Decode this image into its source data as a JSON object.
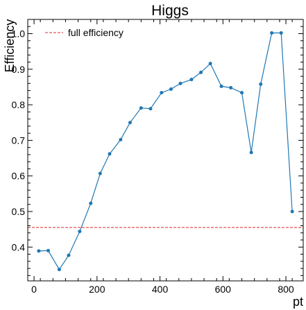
{
  "chart_data": {
    "type": "line",
    "title": "Higgs",
    "xlabel": "pt",
    "ylabel": "Efficiency",
    "xlim": [
      -20,
      855
    ],
    "ylim": [
      0.305,
      1.04
    ],
    "xticks": [
      0,
      200,
      400,
      600,
      800
    ],
    "yticks": [
      0.4,
      0.5,
      0.6,
      0.7,
      0.8,
      0.9,
      1.0
    ],
    "tick_labels_x": [
      "0",
      "200",
      "400",
      "600",
      "800"
    ],
    "tick_labels_y": [
      "0.4",
      "0.5",
      "0.6",
      "0.7",
      "0.8",
      "0.9",
      "1.0"
    ],
    "grid": false,
    "legend_position": "top-left",
    "series": [
      {
        "color": "#1f77b4",
        "x": [
          15,
          45,
          80,
          110,
          145,
          180,
          210,
          240,
          275,
          305,
          340,
          370,
          405,
          435,
          465,
          500,
          530,
          560,
          595,
          625,
          660,
          690,
          720,
          755,
          785,
          820
        ],
        "y": [
          0.389,
          0.39,
          0.337,
          0.377,
          0.444,
          0.523,
          0.607,
          0.662,
          0.702,
          0.75,
          0.791,
          0.789,
          0.834,
          0.844,
          0.86,
          0.871,
          0.891,
          0.916,
          0.852,
          0.848,
          0.834,
          0.666,
          0.858,
          1.002,
          1.002,
          0.5
        ]
      }
    ],
    "reference_lines": [
      {
        "name": "full efficiency",
        "y": 0.455,
        "color": "#d62728",
        "style": "dashed"
      }
    ]
  }
}
